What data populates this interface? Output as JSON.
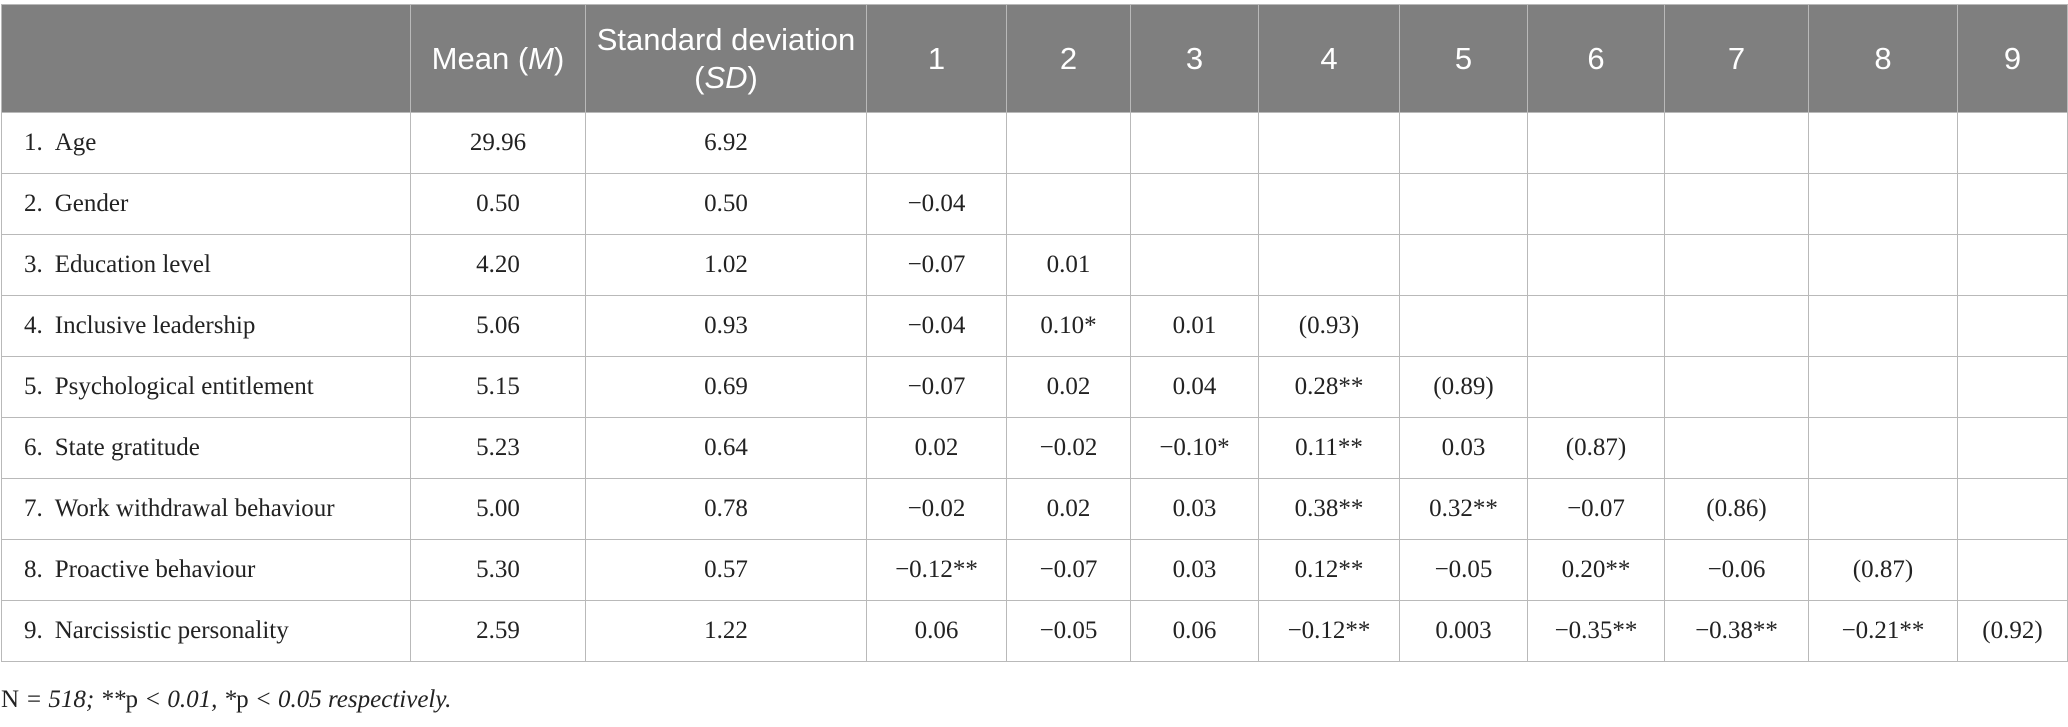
{
  "table": {
    "header": [
      {
        "parts": []
      },
      {
        "parts": [
          "Mean (",
          "M",
          ")"
        ]
      },
      {
        "parts": [
          "Standard deviation (",
          "SD",
          ")"
        ]
      },
      {
        "parts": [
          "1"
        ]
      },
      {
        "parts": [
          "2"
        ]
      },
      {
        "parts": [
          "3"
        ]
      },
      {
        "parts": [
          "4"
        ]
      },
      {
        "parts": [
          "5"
        ]
      },
      {
        "parts": [
          "6"
        ]
      },
      {
        "parts": [
          "7"
        ]
      },
      {
        "parts": [
          "8"
        ]
      },
      {
        "parts": [
          "9"
        ]
      }
    ],
    "rows": [
      {
        "number": "1.",
        "label": "Age",
        "cells": [
          "29.96",
          "6.92",
          null,
          null,
          null,
          null,
          null,
          null,
          null,
          null,
          null
        ]
      },
      {
        "number": "2.",
        "label": "Gender",
        "cells": [
          "0.50",
          "0.50",
          "−0.04",
          null,
          null,
          null,
          null,
          null,
          null,
          null,
          null
        ]
      },
      {
        "number": "3.",
        "label": "Education level",
        "cells": [
          "4.20",
          "1.02",
          "−0.07",
          "0.01",
          null,
          null,
          null,
          null,
          null,
          null,
          null
        ]
      },
      {
        "number": "4.",
        "label": "Inclusive leadership",
        "cells": [
          "5.06",
          "0.93",
          "−0.04",
          "0.10*",
          "0.01",
          "(0.93)",
          null,
          null,
          null,
          null,
          null
        ]
      },
      {
        "number": "5.",
        "label": "Psychological entitlement",
        "cells": [
          "5.15",
          "0.69",
          "−0.07",
          "0.02",
          "0.04",
          "0.28**",
          "(0.89)",
          null,
          null,
          null,
          null
        ]
      },
      {
        "number": "6.",
        "label": "State gratitude",
        "cells": [
          "5.23",
          "0.64",
          "0.02",
          "−0.02",
          "−0.10*",
          "0.11**",
          "0.03",
          "(0.87)",
          null,
          null,
          null
        ]
      },
      {
        "number": "7.",
        "label": "Work withdrawal behaviour",
        "cells": [
          "5.00",
          "0.78",
          "−0.02",
          "0.02",
          "0.03",
          "0.38**",
          "0.32**",
          "−0.07",
          "(0.86)",
          null,
          null
        ]
      },
      {
        "number": "8.",
        "label": "Proactive behaviour",
        "cells": [
          "5.30",
          "0.57",
          "−0.12**",
          "−0.07",
          "0.03",
          "0.12**",
          "−0.05",
          "0.20**",
          "−0.06",
          "(0.87)",
          null
        ]
      },
      {
        "number": "9.",
        "label": "Narcissistic personality",
        "cells": [
          "2.59",
          "1.22",
          "0.06",
          "−0.05",
          "0.06",
          "−0.12**",
          "0.003",
          "−0.35**",
          "−0.38**",
          "−0.21**",
          "(0.92)"
        ]
      }
    ]
  },
  "footnote": {
    "parts": [
      "N",
      " = 518; **",
      "p",
      " < 0.01, *",
      "p",
      " < 0.05 respectively."
    ]
  }
}
